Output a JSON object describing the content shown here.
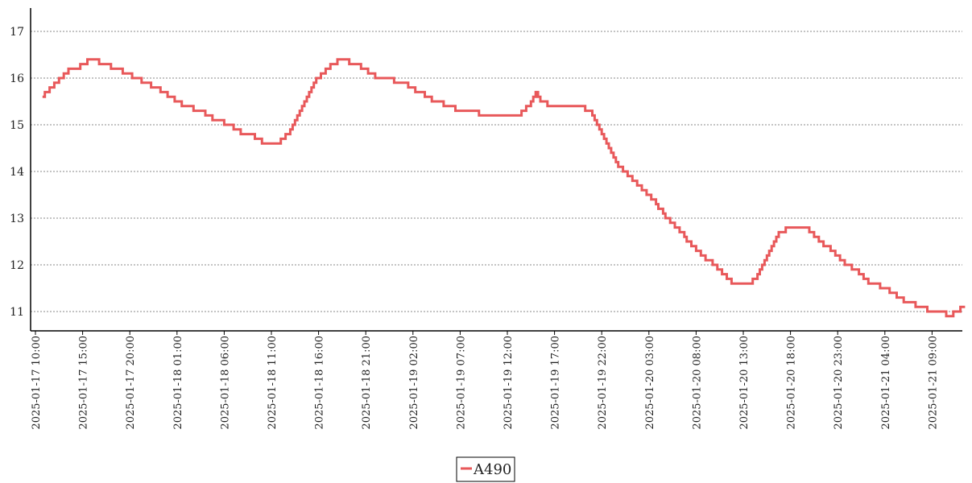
{
  "chart_data": {
    "type": "line",
    "step": true,
    "title": "",
    "xlabel": "",
    "ylabel": "",
    "grid": "horizontal-dashed",
    "legend_position": "bottom-center",
    "ylim": [
      10.6,
      17.5
    ],
    "yticks": [
      11,
      12,
      13,
      14,
      15,
      16,
      17
    ],
    "x_range": [
      "2025-01-17 08:45",
      "2025-01-21 12:00"
    ],
    "xticks": [
      "2025-01-17 10:00",
      "2025-01-17 15:00",
      "2025-01-17 20:00",
      "2025-01-18 01:00",
      "2025-01-18 06:00",
      "2025-01-18 11:00",
      "2025-01-18 16:00",
      "2025-01-18 21:00",
      "2025-01-19 02:00",
      "2025-01-19 07:00",
      "2025-01-19 12:00",
      "2025-01-19 17:00",
      "2025-01-19 22:00",
      "2025-01-20 03:00",
      "2025-01-20 08:00",
      "2025-01-20 13:00",
      "2025-01-20 18:00",
      "2025-01-20 23:00",
      "2025-01-21 04:00",
      "2025-01-21 09:00"
    ],
    "series": [
      {
        "name": "A490",
        "color": "#e8585a",
        "points": [
          [
            "2025-01-17 10:45",
            15.6
          ],
          [
            "2025-01-17 11:00",
            15.7
          ],
          [
            "2025-01-17 11:30",
            15.8
          ],
          [
            "2025-01-17 12:00",
            15.9
          ],
          [
            "2025-01-17 12:30",
            16.0
          ],
          [
            "2025-01-17 13:00",
            16.1
          ],
          [
            "2025-01-17 13:30",
            16.2
          ],
          [
            "2025-01-17 14:45",
            16.3
          ],
          [
            "2025-01-17 15:30",
            16.4
          ],
          [
            "2025-01-17 16:45",
            16.3
          ],
          [
            "2025-01-17 18:00",
            16.2
          ],
          [
            "2025-01-17 19:15",
            16.1
          ],
          [
            "2025-01-17 20:15",
            16.0
          ],
          [
            "2025-01-17 21:15",
            15.9
          ],
          [
            "2025-01-17 22:15",
            15.8
          ],
          [
            "2025-01-17 23:15",
            15.7
          ],
          [
            "2025-01-18 00:00",
            15.6
          ],
          [
            "2025-01-18 00:45",
            15.5
          ],
          [
            "2025-01-18 01:30",
            15.4
          ],
          [
            "2025-01-18 02:45",
            15.3
          ],
          [
            "2025-01-18 04:00",
            15.2
          ],
          [
            "2025-01-18 04:45",
            15.1
          ],
          [
            "2025-01-18 06:00",
            15.0
          ],
          [
            "2025-01-18 07:00",
            14.9
          ],
          [
            "2025-01-18 07:45",
            14.8
          ],
          [
            "2025-01-18 09:15",
            14.7
          ],
          [
            "2025-01-18 10:00",
            14.6
          ],
          [
            "2025-01-18 12:00",
            14.7
          ],
          [
            "2025-01-18 12:30",
            14.8
          ],
          [
            "2025-01-18 13:00",
            14.9
          ],
          [
            "2025-01-18 13:15",
            15.0
          ],
          [
            "2025-01-18 13:30",
            15.1
          ],
          [
            "2025-01-18 13:45",
            15.2
          ],
          [
            "2025-01-18 14:00",
            15.3
          ],
          [
            "2025-01-18 14:15",
            15.4
          ],
          [
            "2025-01-18 14:30",
            15.5
          ],
          [
            "2025-01-18 14:45",
            15.6
          ],
          [
            "2025-01-18 15:00",
            15.7
          ],
          [
            "2025-01-18 15:15",
            15.8
          ],
          [
            "2025-01-18 15:30",
            15.9
          ],
          [
            "2025-01-18 15:45",
            16.0
          ],
          [
            "2025-01-18 16:15",
            16.1
          ],
          [
            "2025-01-18 16:45",
            16.2
          ],
          [
            "2025-01-18 17:15",
            16.3
          ],
          [
            "2025-01-18 18:00",
            16.4
          ],
          [
            "2025-01-18 19:15",
            16.3
          ],
          [
            "2025-01-18 20:30",
            16.2
          ],
          [
            "2025-01-18 21:15",
            16.1
          ],
          [
            "2025-01-18 22:00",
            16.0
          ],
          [
            "2025-01-19 00:00",
            15.9
          ],
          [
            "2025-01-19 01:30",
            15.8
          ],
          [
            "2025-01-19 02:15",
            15.7
          ],
          [
            "2025-01-19 03:15",
            15.6
          ],
          [
            "2025-01-19 04:00",
            15.5
          ],
          [
            "2025-01-19 05:15",
            15.4
          ],
          [
            "2025-01-19 06:30",
            15.3
          ],
          [
            "2025-01-19 09:00",
            15.2
          ],
          [
            "2025-01-19 13:30",
            15.3
          ],
          [
            "2025-01-19 14:00",
            15.4
          ],
          [
            "2025-01-19 14:30",
            15.5
          ],
          [
            "2025-01-19 14:45",
            15.6
          ],
          [
            "2025-01-19 15:00",
            15.7
          ],
          [
            "2025-01-19 15:15",
            15.6
          ],
          [
            "2025-01-19 15:30",
            15.5
          ],
          [
            "2025-01-19 16:15",
            15.4
          ],
          [
            "2025-01-19 20:15",
            15.3
          ],
          [
            "2025-01-19 21:00",
            15.2
          ],
          [
            "2025-01-19 21:15",
            15.1
          ],
          [
            "2025-01-19 21:30",
            15.0
          ],
          [
            "2025-01-19 21:45",
            14.9
          ],
          [
            "2025-01-19 22:00",
            14.8
          ],
          [
            "2025-01-19 22:15",
            14.7
          ],
          [
            "2025-01-19 22:30",
            14.6
          ],
          [
            "2025-01-19 22:45",
            14.5
          ],
          [
            "2025-01-19 23:00",
            14.4
          ],
          [
            "2025-01-19 23:15",
            14.3
          ],
          [
            "2025-01-19 23:30",
            14.2
          ],
          [
            "2025-01-19 23:45",
            14.1
          ],
          [
            "2025-01-20 00:15",
            14.0
          ],
          [
            "2025-01-20 00:45",
            13.9
          ],
          [
            "2025-01-20 01:15",
            13.8
          ],
          [
            "2025-01-20 01:45",
            13.7
          ],
          [
            "2025-01-20 02:15",
            13.6
          ],
          [
            "2025-01-20 02:45",
            13.5
          ],
          [
            "2025-01-20 03:15",
            13.4
          ],
          [
            "2025-01-20 03:45",
            13.3
          ],
          [
            "2025-01-20 04:00",
            13.2
          ],
          [
            "2025-01-20 04:30",
            13.1
          ],
          [
            "2025-01-20 04:45",
            13.0
          ],
          [
            "2025-01-20 05:15",
            12.9
          ],
          [
            "2025-01-20 05:45",
            12.8
          ],
          [
            "2025-01-20 06:15",
            12.7
          ],
          [
            "2025-01-20 06:45",
            12.6
          ],
          [
            "2025-01-20 07:00",
            12.5
          ],
          [
            "2025-01-20 07:30",
            12.4
          ],
          [
            "2025-01-20 08:00",
            12.3
          ],
          [
            "2025-01-20 08:30",
            12.2
          ],
          [
            "2025-01-20 09:00",
            12.1
          ],
          [
            "2025-01-20 09:45",
            12.0
          ],
          [
            "2025-01-20 10:15",
            11.9
          ],
          [
            "2025-01-20 10:45",
            11.8
          ],
          [
            "2025-01-20 11:15",
            11.7
          ],
          [
            "2025-01-20 11:45",
            11.6
          ],
          [
            "2025-01-20 14:00",
            11.7
          ],
          [
            "2025-01-20 14:30",
            11.8
          ],
          [
            "2025-01-20 14:45",
            11.9
          ],
          [
            "2025-01-20 15:00",
            12.0
          ],
          [
            "2025-01-20 15:15",
            12.1
          ],
          [
            "2025-01-20 15:30",
            12.2
          ],
          [
            "2025-01-20 15:45",
            12.3
          ],
          [
            "2025-01-20 16:00",
            12.4
          ],
          [
            "2025-01-20 16:15",
            12.5
          ],
          [
            "2025-01-20 16:30",
            12.6
          ],
          [
            "2025-01-20 16:45",
            12.7
          ],
          [
            "2025-01-20 17:30",
            12.8
          ],
          [
            "2025-01-20 20:00",
            12.7
          ],
          [
            "2025-01-20 20:30",
            12.6
          ],
          [
            "2025-01-20 21:00",
            12.5
          ],
          [
            "2025-01-20 21:30",
            12.4
          ],
          [
            "2025-01-20 22:15",
            12.3
          ],
          [
            "2025-01-20 22:45",
            12.2
          ],
          [
            "2025-01-20 23:15",
            12.1
          ],
          [
            "2025-01-20 23:45",
            12.0
          ],
          [
            "2025-01-21 00:30",
            11.9
          ],
          [
            "2025-01-21 01:15",
            11.8
          ],
          [
            "2025-01-21 01:45",
            11.7
          ],
          [
            "2025-01-21 02:15",
            11.6
          ],
          [
            "2025-01-21 03:30",
            11.5
          ],
          [
            "2025-01-21 04:30",
            11.4
          ],
          [
            "2025-01-21 05:15",
            11.3
          ],
          [
            "2025-01-21 06:00",
            11.2
          ],
          [
            "2025-01-21 07:15",
            11.1
          ],
          [
            "2025-01-21 08:30",
            11.0
          ],
          [
            "2025-01-21 10:30",
            10.9
          ],
          [
            "2025-01-21 11:15",
            11.0
          ],
          [
            "2025-01-21 12:00",
            11.1
          ],
          [
            "2025-01-21 12:30",
            11.1
          ]
        ]
      }
    ]
  },
  "legend": {
    "label": "A490"
  }
}
